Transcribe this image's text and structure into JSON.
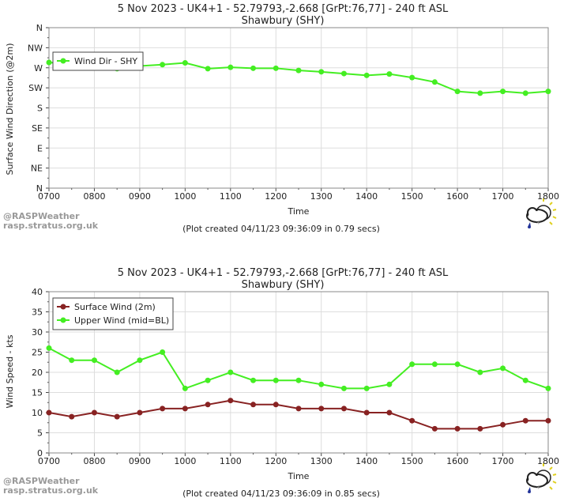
{
  "chart_data": [
    {
      "type": "line",
      "title": "5 Nov 2023 - UK4+1 - 52.79793,-2.668 [GrPt:76,77]  - 240 ft ASL",
      "subtitle": "Shawbury (SHY)",
      "xlabel": "Time",
      "ylabel": "Surface Wind Direction (@2m)",
      "x_ticks": [
        "0700",
        "0800",
        "0900",
        "1000",
        "1100",
        "1200",
        "1300",
        "1400",
        "1500",
        "1600",
        "1700",
        "1800"
      ],
      "y_ticks": [
        "N",
        "NE",
        "E",
        "SE",
        "S",
        "SW",
        "W",
        "NW",
        "N"
      ],
      "ylim": [
        0,
        360
      ],
      "xlim": [
        7,
        18
      ],
      "x": [
        7,
        7.5,
        8,
        8.5,
        9,
        9.5,
        10,
        10.5,
        11,
        11.5,
        12,
        12.5,
        13,
        13.5,
        14,
        14.5,
        15,
        15.5,
        16,
        16.5,
        17,
        17.5,
        18
      ],
      "series": [
        {
          "name": "Wind Dir - SHY",
          "color": "#44ee22",
          "values": [
            282,
            278,
            273,
            268,
            274,
            277,
            281,
            268,
            271,
            269,
            269,
            264,
            261,
            257,
            253,
            256,
            248,
            238,
            217,
            213,
            217,
            213,
            217
          ]
        }
      ],
      "credit": [
        "@RASPWeather",
        "rasp.stratus.org.uk"
      ],
      "footer": "(Plot created 04/11/23 09:36:09 in 0.79 secs)"
    },
    {
      "type": "line",
      "title": "5 Nov 2023 - UK4+1 - 52.79793,-2.668 [GrPt:76,77]  - 240 ft ASL",
      "subtitle": "Shawbury (SHY)",
      "xlabel": "Time",
      "ylabel": "Wind Speed - kts",
      "x_ticks": [
        "0700",
        "0800",
        "0900",
        "1000",
        "1100",
        "1200",
        "1300",
        "1400",
        "1500",
        "1600",
        "1700",
        "1800"
      ],
      "y_ticks": [
        "0",
        "5",
        "10",
        "15",
        "20",
        "25",
        "30",
        "35",
        "40"
      ],
      "ylim": [
        0,
        40
      ],
      "xlim": [
        7,
        18
      ],
      "x": [
        7,
        7.5,
        8,
        8.5,
        9,
        9.5,
        10,
        10.5,
        11,
        11.5,
        12,
        12.5,
        13,
        13.5,
        14,
        14.5,
        15,
        15.5,
        16,
        16.5,
        17,
        17.5,
        18
      ],
      "series": [
        {
          "name": "Surface Wind (2m)",
          "color": "#882222",
          "values": [
            10,
            9,
            10,
            9,
            10,
            11,
            11,
            12,
            13,
            12,
            12,
            11,
            11,
            11,
            10,
            10,
            8,
            6,
            6,
            6,
            7,
            8,
            8
          ]
        },
        {
          "name": "Upper Wind (mid=BL)",
          "color": "#44ee22",
          "values": [
            26,
            23,
            23,
            20,
            23,
            25,
            16,
            18,
            20,
            18,
            18,
            18,
            17,
            16,
            16,
            17,
            22,
            22,
            22,
            20,
            21,
            18,
            16
          ]
        }
      ],
      "credit": [
        "@RASPWeather",
        "rasp.stratus.org.uk"
      ],
      "footer": "(Plot created 04/11/23 09:36:09 in 0.85 secs)"
    }
  ]
}
